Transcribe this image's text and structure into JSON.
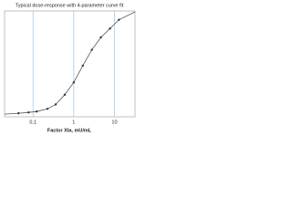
{
  "chart_data": {
    "type": "line",
    "title": "Typical dose-response with 4-parameter curve fit",
    "x_label": "Factor XIa, mU/mL",
    "xlim": [
      0.02,
      32
    ],
    "xticks": [
      {
        "value": 0.1,
        "label": "0,1"
      },
      1,
      10
    ],
    "log_x": true,
    "ylim": [
      0,
      1.2
    ],
    "grid": true,
    "series": [
      {
        "color": "#555555",
        "style": "curve",
        "x": [
          0.02,
          0.044,
          0.078,
          0.123,
          0.227,
          0.36,
          0.6,
          1,
          1.67,
          2.78,
          4.64,
          7.74,
          12.9,
          32
        ],
        "values": [
          0.03,
          0.04,
          0.05,
          0.06,
          0.09,
          0.14,
          0.25,
          0.39,
          0.58,
          0.76,
          0.9,
          1.0,
          1.1,
          1.19
        ]
      },
      {
        "color": "#333333",
        "style": "markers",
        "x": [
          0.044,
          0.078,
          0.123,
          0.227,
          0.36,
          0.6,
          1,
          1.67,
          2.78,
          4.64,
          7.74,
          12.9
        ],
        "values": [
          0.04,
          0.05,
          0.06,
          0.09,
          0.14,
          0.25,
          0.39,
          0.58,
          0.76,
          0.9,
          1.0,
          1.1
        ]
      }
    ]
  }
}
